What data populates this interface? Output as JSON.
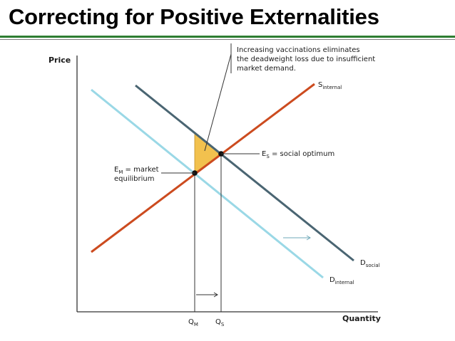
{
  "title": "Correcting for Positive Externalities",
  "axes": {
    "y_label": "Price",
    "x_label": "Quantity"
  },
  "callout": {
    "line1": "Increasing vaccinations eliminates",
    "line2": "the deadweight loss due to insufficient",
    "line3": "market demand."
  },
  "curves": {
    "s_internal": {
      "base": "S",
      "sub": "internal"
    },
    "d_social": {
      "base": "D",
      "sub": "social"
    },
    "d_internal": {
      "base": "D",
      "sub": "internal"
    }
  },
  "points": {
    "es": {
      "base": "E",
      "sub": "S",
      "text": " = social optimum"
    },
    "em": {
      "base": "E",
      "sub": "M",
      "text": " = market",
      "line2": "equilibrium"
    }
  },
  "ticks": {
    "qm": {
      "base": "Q",
      "sub": "M"
    },
    "qs": {
      "base": "Q",
      "sub": "S"
    }
  },
  "colors": {
    "supply": "#cc4b1f",
    "demand_social": "#4a6572",
    "demand_internal": "#9ad8e6",
    "deadweight_fill": "#f2c14e",
    "title_rule": "#2e7d32"
  }
}
